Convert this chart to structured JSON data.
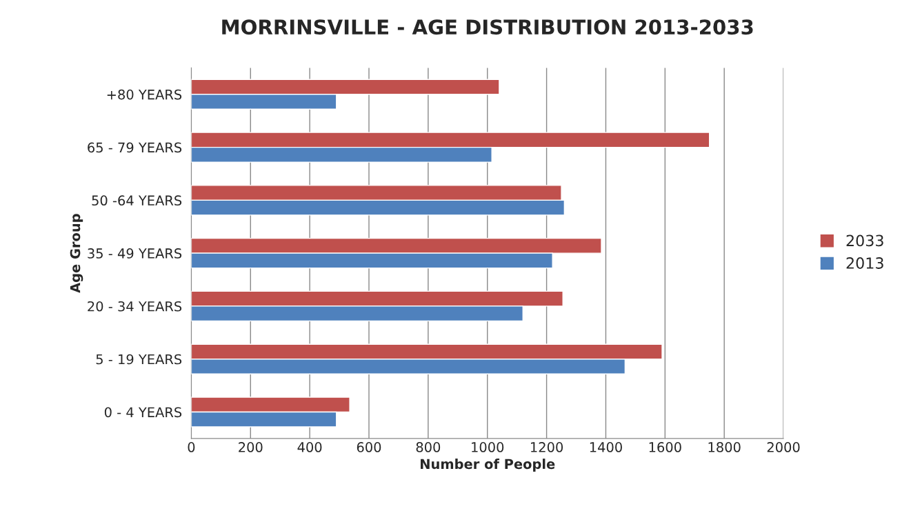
{
  "chart_data": {
    "type": "bar",
    "orientation": "horizontal",
    "title": "MORRINSVILLE - AGE DISTRIBUTION 2013-2033",
    "xlabel": "Number of People",
    "ylabel": "Age Group",
    "categories": [
      "+80 YEARS",
      "65 - 79 YEARS",
      "50 -64 YEARS",
      "35 - 49 YEARS",
      "20 - 34 YEARS",
      "5 - 19 YEARS",
      "0 - 4 YEARS"
    ],
    "series": [
      {
        "name": "2033",
        "color": "#c0504d",
        "values": [
          1040,
          1750,
          1250,
          1385,
          1255,
          1590,
          535
        ]
      },
      {
        "name": "2013",
        "color": "#4f81bd",
        "values": [
          490,
          1015,
          1260,
          1220,
          1120,
          1465,
          490
        ]
      }
    ],
    "xlim": [
      0,
      2000
    ],
    "xticks": [
      0,
      200,
      400,
      600,
      800,
      1000,
      1200,
      1400,
      1600,
      1800,
      2000
    ],
    "grid": "x",
    "legend": "right"
  }
}
